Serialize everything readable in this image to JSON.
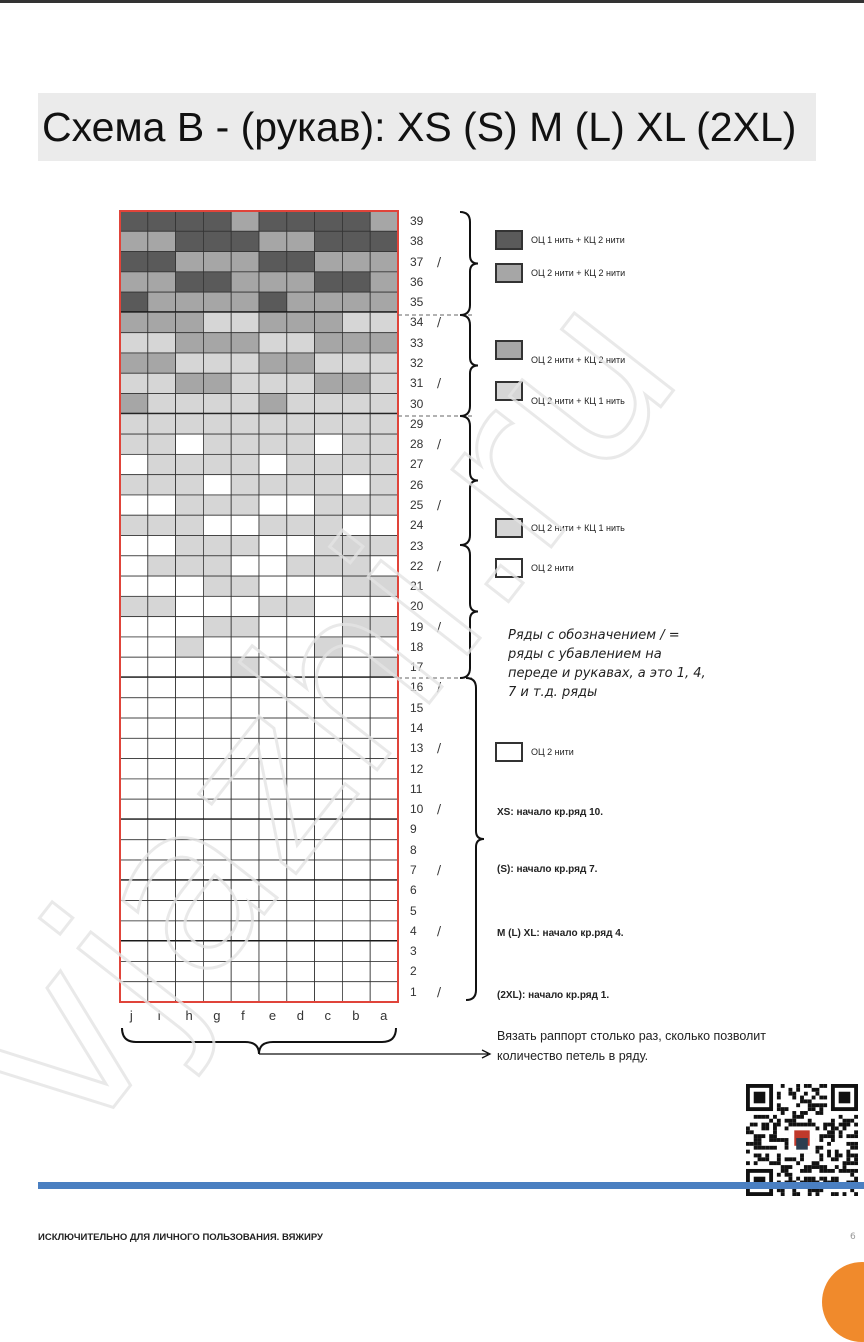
{
  "title": "Схема В - (рукав): XS (S) M (L) XL (2XL)",
  "chart": {
    "columns": [
      "j",
      "i",
      "h",
      "g",
      "f",
      "e",
      "d",
      "c",
      "b",
      "a"
    ],
    "colors": {
      "D": "#5a5a5a",
      "M": "#a6a6a6",
      "L": "#d6d6d6",
      "W": "#ffffff"
    },
    "decrease_rows": [
      1,
      4,
      7,
      10,
      13,
      16,
      19,
      22,
      25,
      28,
      31,
      34,
      37
    ],
    "decrease_mark": "/",
    "rows_top_to_bottom": [
      {
        "n": "39",
        "cells": "DDDDMDDDDM"
      },
      {
        "n": "38",
        "cells": "MMDDDMMDDD"
      },
      {
        "n": "37",
        "cells": "DDMMMDDMMM"
      },
      {
        "n": "36",
        "cells": "MMDDMMMDDM"
      },
      {
        "n": "35",
        "cells": "DMMMMDMMMM"
      },
      {
        "n": "34",
        "cells": "MMMLLMMMLL"
      },
      {
        "n": "33",
        "cells": "LLMMMLLMMM"
      },
      {
        "n": "32",
        "cells": "MMLLLMMLLL"
      },
      {
        "n": "31",
        "cells": "LLMMLLLMML"
      },
      {
        "n": "30",
        "cells": "MLLLLMLLLL"
      },
      {
        "n": "29",
        "cells": "LLLLLLLLLL"
      },
      {
        "n": "28",
        "cells": "LLWLLLLWLL"
      },
      {
        "n": "27",
        "cells": "WLLLLWLLLL"
      },
      {
        "n": "26",
        "cells": "LLLWLLLLWL"
      },
      {
        "n": "25",
        "cells": "WWLLLWWLLL"
      },
      {
        "n": "24",
        "cells": "LLLWWLLLWW"
      },
      {
        "n": "23",
        "cells": "WWLLLWWLLL"
      },
      {
        "n": "22",
        "cells": "WLLLWWLLLW"
      },
      {
        "n": "21",
        "cells": "WWWLLWWWLL"
      },
      {
        "n": "20",
        "cells": "LLWWWLLWWW"
      },
      {
        "n": "19",
        "cells": "WWWLLWWWLL"
      },
      {
        "n": "18",
        "cells": "WWLWWWWLWW"
      },
      {
        "n": "17",
        "cells": "WWWWLWWWWL"
      },
      {
        "n": "16",
        "cells": "WWWWWWWWWW"
      },
      {
        "n": "15",
        "cells": "WWWWWWWWWW"
      },
      {
        "n": "14",
        "cells": "WWWWWWWWWW"
      },
      {
        "n": "13",
        "cells": "WWWWWWWWWW"
      },
      {
        "n": "12",
        "cells": "WWWWWWWWWW"
      },
      {
        "n": "11",
        "cells": "WWWWWWWWWW"
      },
      {
        "n": "10",
        "cells": "WWWWWWWWWW"
      },
      {
        "n": "9",
        "cells": "WWWWWWWWWW"
      },
      {
        "n": "8",
        "cells": "WWWWWWWWWW"
      },
      {
        "n": "7",
        "cells": "WWWWWWWWWW"
      },
      {
        "n": "6",
        "cells": "WWWWWWWWWW"
      },
      {
        "n": "5",
        "cells": "WWWWWWWWWW"
      },
      {
        "n": "4",
        "cells": "WWWWWWWWWW"
      },
      {
        "n": "3",
        "cells": "WWWWWWWWWW"
      },
      {
        "n": "2",
        "cells": "WWWWWWWWWW"
      },
      {
        "n": "1",
        "cells": "WWWWWWWWWW"
      }
    ],
    "thick_lines_below_rows": [
      35,
      30,
      17,
      10,
      7,
      4
    ]
  },
  "legend": [
    {
      "color": "D",
      "label": "ОЦ 1 нить + КЦ 2 нити"
    },
    {
      "color": "M",
      "label": "ОЦ 2 нити + КЦ 2 нити"
    },
    {
      "color": "M",
      "label": "ОЦ 2 нити + КЦ 2 нити"
    },
    {
      "color": "L",
      "label": "ОЦ 2 нити + КЦ 1 нить"
    },
    {
      "color": "L",
      "label": "ОЦ 2 нити + КЦ 1 нить"
    },
    {
      "color": "W",
      "label": "ОЦ 2 нити"
    },
    {
      "color": "W",
      "label": "ОЦ 2 нити"
    }
  ],
  "note": "Ряды с обозначением / = ряды с убавлением на переде и рукавах, а это 1, 4, 7 и т.д. ряды",
  "sizes": [
    "XS: начало кр.ряд 10.",
    "(S): начало кр.ряд 7.",
    "M (L) XL: начало кр.ряд 4.",
    "(2XL): начало кр.ряд 1."
  ],
  "repeat_note": "Вязать раппорт столько раз, сколько позволит количество петель в ряду.",
  "watermark": "vjazhi.ru",
  "footer": {
    "text": "ИСКЛЮЧИТЕЛЬНО ДЛЯ ЛИЧНОГО ПОЛЬЗОВАНИЯ. ВЯЖИРУ",
    "page": "6",
    "accent": "#4a7fc1"
  }
}
